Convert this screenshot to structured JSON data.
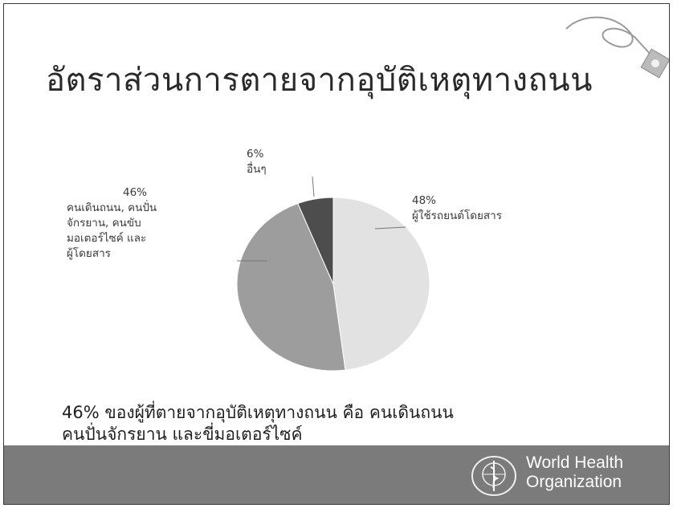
{
  "slide": {
    "title": "อัตราส่วนการตายจากอุบัติเหตุทางถนน",
    "footer_line1": "46% ของผู้ที่ตายจากอุบัติเหตุทางถนน   คือ   คนเดินถนน",
    "footer_line2": "คนปั่นจักรยาน   และขี่มอเตอร์ไซค์",
    "org_line1": "World Health",
    "org_line2": "Organization",
    "colors": {
      "bar": "#7b7b7b",
      "slice_vehicle": "#e2e2e2",
      "slice_vulnerable": "#9d9d9d",
      "slice_other": "#4d4d4d"
    }
  },
  "chart_data": {
    "type": "pie",
    "title": "",
    "slices": [
      {
        "label": "ผู้ใช้รถยนต์โดยสาร",
        "pct_label": "48%",
        "value": 48,
        "color": "#e2e2e2"
      },
      {
        "label": "คนเดินถนน, คนปั่นจักรยาน, คนขับมอเตอร์ไซค์ และผู้โดยสาร",
        "pct_label": "46%",
        "value": 46,
        "color": "#9d9d9d"
      },
      {
        "label": "อื่นๆ",
        "pct_label": "6%",
        "value": 6,
        "color": "#4d4d4d"
      }
    ],
    "label_lines": [
      "คนเดินถนน, คนปั่น",
      "จักรยาน, คนขับ",
      "มอเตอร์ไซค์  และ",
      "ผู้โดยสาร"
    ]
  }
}
